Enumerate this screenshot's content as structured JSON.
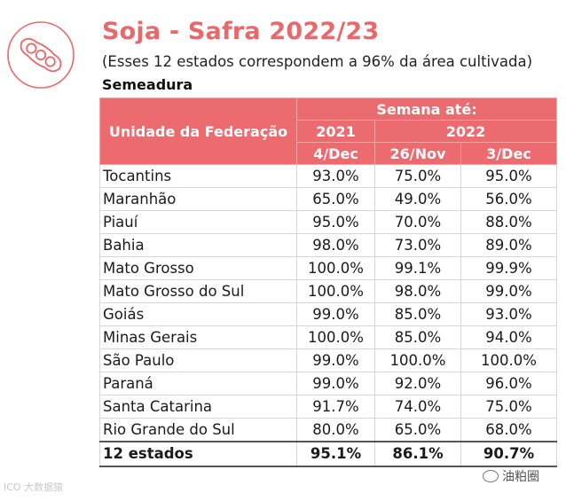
{
  "header": {
    "title": "Soja - Safra 2022/23",
    "subtitle": "(Esses 12 estados correspondem a 96% da área cultivada)",
    "section": "Semeadura"
  },
  "logo": {
    "icon": "soybean-pod-icon",
    "color": "#e8696b"
  },
  "table": {
    "col_uf": "Unidade da Federação",
    "col_group": "Semana até:",
    "year_a": "2021",
    "year_b": "2022",
    "dates": [
      "4/Dec",
      "26/Nov",
      "3/Dec"
    ],
    "rows": [
      {
        "uf": "Tocantins",
        "v": [
          "93.0%",
          "75.0%",
          "95.0%"
        ]
      },
      {
        "uf": "Maranhão",
        "v": [
          "65.0%",
          "49.0%",
          "56.0%"
        ]
      },
      {
        "uf": "Piauí",
        "v": [
          "95.0%",
          "70.0%",
          "88.0%"
        ]
      },
      {
        "uf": "Bahia",
        "v": [
          "98.0%",
          "73.0%",
          "89.0%"
        ]
      },
      {
        "uf": "Mato Grosso",
        "v": [
          "100.0%",
          "99.1%",
          "99.9%"
        ]
      },
      {
        "uf": "Mato Grosso do Sul",
        "v": [
          "100.0%",
          "98.0%",
          "99.0%"
        ]
      },
      {
        "uf": "Goiás",
        "v": [
          "99.0%",
          "85.0%",
          "93.0%"
        ]
      },
      {
        "uf": "Minas Gerais",
        "v": [
          "100.0%",
          "85.0%",
          "94.0%"
        ]
      },
      {
        "uf": "São Paulo",
        "v": [
          "99.0%",
          "100.0%",
          "100.0%"
        ]
      },
      {
        "uf": "Paraná",
        "v": [
          "99.0%",
          "92.0%",
          "96.0%"
        ]
      },
      {
        "uf": "Santa Catarina",
        "v": [
          "91.7%",
          "74.0%",
          "75.0%"
        ]
      },
      {
        "uf": "Rio Grande do Sul",
        "v": [
          "80.0%",
          "65.0%",
          "68.0%"
        ]
      }
    ],
    "total": {
      "uf": "12 estados",
      "v": [
        "95.1%",
        "86.1%",
        "90.7%"
      ]
    },
    "header_color": "#ec6b6e"
  },
  "watermarks": {
    "left": "ICO 大数据猿",
    "right": "油粕圈"
  }
}
